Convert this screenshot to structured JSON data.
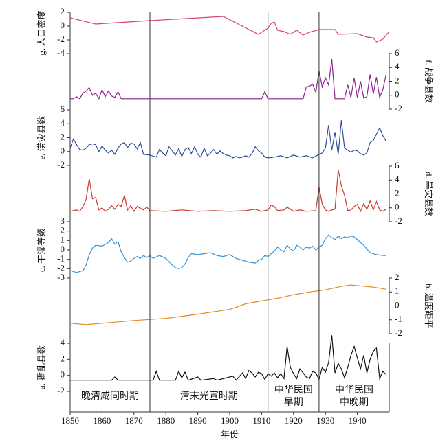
{
  "chart_data": [
    {
      "type": "line",
      "ylabel": "g. 人口密度",
      "side": "left",
      "color": "#d6407f",
      "ylim": [
        -4,
        2
      ],
      "yticks": [
        2,
        0,
        -2,
        -4
      ],
      "x": [
        1850,
        1858,
        1875,
        1898,
        1909,
        1912,
        1913,
        1914,
        1915,
        1917,
        1919,
        1921,
        1923,
        1925,
        1928,
        1933,
        1934,
        1940,
        1943,
        1945,
        1946,
        1948,
        1950
      ],
      "values": [
        1.2,
        0.3,
        0.8,
        1.4,
        -1.2,
        -0.3,
        0.4,
        0.6,
        -0.6,
        -0.8,
        -1.2,
        -0.6,
        -1.3,
        -0.9,
        -0.5,
        -0.5,
        -1.2,
        -1.1,
        -1.6,
        -1.7,
        -2.3,
        -1.9,
        -0.8
      ]
    },
    {
      "type": "line",
      "ylabel": "f. 战争县数",
      "side": "right",
      "color": "#8e1f8e",
      "ylim": [
        -2,
        6
      ],
      "yticks": [
        6,
        4,
        2,
        0,
        -2
      ],
      "x": [
        1850,
        1851,
        1852,
        1853,
        1854,
        1855,
        1856,
        1857,
        1858,
        1859,
        1860,
        1861,
        1862,
        1863,
        1864,
        1865,
        1866,
        1910,
        1911,
        1912,
        1923,
        1924,
        1925,
        1926,
        1927,
        1928,
        1929,
        1930,
        1931,
        1932,
        1933,
        1934,
        1935,
        1936,
        1937,
        1938,
        1939,
        1940,
        1941,
        1942,
        1943,
        1944,
        1945,
        1946,
        1947,
        1948,
        1949
      ],
      "values": [
        -0.5,
        -0.5,
        -0.2,
        -0.5,
        0.3,
        0.6,
        1.1,
        0,
        0.3,
        -0.5,
        0.8,
        -0.2,
        0.6,
        -0.1,
        -0.3,
        0.5,
        -0.5,
        -0.5,
        0.5,
        -0.5,
        -0.5,
        1.2,
        1.3,
        1.6,
        0.4,
        3.5,
        1.2,
        2.5,
        1.5,
        5.2,
        -0.5,
        -0.5,
        -0.5,
        -0.5,
        1.5,
        -0.3,
        2.5,
        -0.3,
        2.0,
        -0.4,
        -0.2,
        3.0,
        0.2,
        2.6,
        -0.3,
        0.8,
        3.0
      ]
    },
    {
      "type": "line",
      "ylabel": "e. 涝灾县数",
      "side": "left",
      "color": "#2b4c9a",
      "ylim": [
        -2,
        6
      ],
      "yticks": [
        6,
        4,
        2,
        0,
        -2
      ],
      "x": [
        1850,
        1851,
        1852,
        1853,
        1854,
        1855,
        1856,
        1857,
        1858,
        1859,
        1860,
        1861,
        1862,
        1863,
        1864,
        1865,
        1866,
        1867,
        1868,
        1869,
        1870,
        1871,
        1872,
        1873,
        1875,
        1877,
        1878,
        1879,
        1880,
        1881,
        1882,
        1883,
        1884,
        1885,
        1886,
        1887,
        1888,
        1889,
        1890,
        1891,
        1892,
        1893,
        1894,
        1895,
        1896,
        1897,
        1898,
        1899,
        1900,
        1901,
        1902,
        1903,
        1904,
        1905,
        1906,
        1907,
        1908,
        1909,
        1910,
        1911,
        1912,
        1914,
        1916,
        1918,
        1920,
        1922,
        1924,
        1926,
        1928,
        1929,
        1930,
        1931,
        1932,
        1933,
        1934,
        1935,
        1936,
        1937,
        1938,
        1939,
        1940,
        1941,
        1942,
        1943,
        1944,
        1945,
        1946,
        1947,
        1948,
        1949
      ],
      "values": [
        0.5,
        1.8,
        1.0,
        0.3,
        0.2,
        0.5,
        1.0,
        1.1,
        1.0,
        0,
        0.8,
        0.2,
        -0.2,
        0.2,
        -0.4,
        0.5,
        1.1,
        1.3,
        0.6,
        1.2,
        1.1,
        0.4,
        1.3,
        -0.4,
        -0.5,
        -0.8,
        0.3,
        -0.2,
        -0.6,
        0.7,
        0.1,
        -0.5,
        0.4,
        -0.7,
        0.3,
        0.6,
        -0.3,
        0.7,
        -0.4,
        -0.8,
        0.5,
        -0.6,
        -0.2,
        0.3,
        -0.4,
        0.1,
        -0.3,
        -0.5,
        -0.6,
        -0.9,
        -0.7,
        -0.9,
        -0.8,
        -0.6,
        -0.8,
        -0.3,
        0.7,
        0.1,
        -0.2,
        -0.8,
        -0.9,
        -0.8,
        -0.6,
        -0.9,
        -0.5,
        -0.8,
        -0.6,
        -0.9,
        -0.4,
        -0.2,
        0.5,
        3.8,
        0.2,
        2.8,
        -0.4,
        4.5,
        0.5,
        0.2,
        -0.1,
        0.2,
        0.1,
        -0.3,
        -0.5,
        -0.2,
        1.3,
        1.6,
        2.5,
        3.4,
        2.3,
        1.5
      ]
    },
    {
      "type": "line",
      "ylabel": "d. 旱灾县数",
      "side": "right",
      "color": "#c8392b",
      "ylim": [
        -2,
        6
      ],
      "yticks": [
        6,
        4,
        2,
        0,
        -2
      ],
      "x": [
        1850,
        1852,
        1853,
        1854,
        1855,
        1856,
        1857,
        1858,
        1859,
        1860,
        1861,
        1862,
        1863,
        1864,
        1865,
        1866,
        1867,
        1868,
        1869,
        1870,
        1871,
        1873,
        1874,
        1875,
        1880,
        1885,
        1890,
        1895,
        1900,
        1905,
        1908,
        1910,
        1912,
        1913,
        1914,
        1915,
        1917,
        1918,
        1920,
        1922,
        1924,
        1927,
        1928,
        1929,
        1930,
        1931,
        1932,
        1933,
        1934,
        1935,
        1936,
        1937,
        1938,
        1939,
        1940,
        1941,
        1942,
        1943,
        1944,
        1945,
        1946,
        1947,
        1948,
        1949
      ],
      "values": [
        -0.5,
        -0.3,
        -0.5,
        0.2,
        1.2,
        4.2,
        1.3,
        1.5,
        -0.3,
        0,
        -0.5,
        -0.2,
        0.3,
        -0.2,
        0.5,
        0.2,
        1.8,
        -0.3,
        0.3,
        -0.5,
        0.2,
        -0.3,
        0.1,
        -0.4,
        -0.5,
        -0.3,
        -0.5,
        -0.4,
        -0.5,
        -0.4,
        -0.2,
        -0.5,
        -0.3,
        0.4,
        0.2,
        -0.4,
        -0.3,
        0.1,
        -0.5,
        -0.3,
        -0.5,
        -0.4,
        3.0,
        0.5,
        -0.3,
        -0.5,
        -0.3,
        -0.2,
        5.5,
        3.2,
        1.8,
        -0.4,
        -0.3,
        0.2,
        0.5,
        -0.5,
        0.6,
        -0.2,
        1.0,
        -0.3,
        0.9,
        -0.3,
        -0.5,
        -0.2
      ]
    },
    {
      "type": "line",
      "ylabel": "c. 干湿等级",
      "side": "left",
      "color": "#3a90d0",
      "ylim": [
        -3,
        3
      ],
      "yticks": [
        3,
        2,
        1,
        0,
        -1,
        -2,
        -3
      ],
      "x": [
        1850,
        1852,
        1854,
        1855,
        1856,
        1857,
        1858,
        1860,
        1862,
        1863,
        1864,
        1865,
        1866,
        1867,
        1868,
        1869,
        1870,
        1871,
        1872,
        1873,
        1874,
        1875,
        1876,
        1878,
        1880,
        1882,
        1883,
        1884,
        1885,
        1886,
        1887,
        1888,
        1890,
        1892,
        1894,
        1896,
        1898,
        1900,
        1902,
        1904,
        1906,
        1908,
        1909,
        1910,
        1911,
        1912,
        1913,
        1914,
        1915,
        1916,
        1917,
        1918,
        1919,
        1920,
        1921,
        1922,
        1923,
        1924,
        1925,
        1926,
        1927,
        1928,
        1929,
        1930,
        1931,
        1932,
        1933,
        1934,
        1935,
        1936,
        1937,
        1938,
        1939,
        1940,
        1941,
        1942,
        1944,
        1946,
        1948,
        1949
      ],
      "values": [
        -2.2,
        -2.4,
        -2.2,
        -1.6,
        -0.5,
        0.2,
        0.5,
        0.4,
        0.8,
        1.2,
        0.6,
        0.9,
        -0.2,
        -0.8,
        -1.3,
        -1.2,
        -0.9,
        -0.7,
        -0.9,
        -0.6,
        -0.8,
        -0.6,
        -0.9,
        -0.6,
        -0.9,
        -1.6,
        -1.9,
        -2.0,
        -1.9,
        -1.5,
        -0.8,
        -0.4,
        -0.5,
        -0.4,
        -0.3,
        -0.6,
        -0.7,
        -0.5,
        -0.9,
        -1.1,
        -1.3,
        -1.4,
        -1.1,
        -1.0,
        -0.6,
        -0.7,
        -0.4,
        -0.1,
        0.3,
        0.0,
        -0.2,
        0.5,
        0.1,
        -0.1,
        0.5,
        0.3,
        0.0,
        0.3,
        0.2,
        0.4,
        0.0,
        0.3,
        0.5,
        1.2,
        1.6,
        1.3,
        1.1,
        1.5,
        1.2,
        1.4,
        1.3,
        1.5,
        1.4,
        1.1,
        0.8,
        0.5,
        -0.3,
        -0.5,
        -0.6,
        -0.6
      ]
    },
    {
      "type": "line",
      "ylabel": "b. 温度距平",
      "side": "right",
      "color": "#e3891f",
      "ylim": [
        -2,
        2
      ],
      "yticks": [
        2,
        1,
        0,
        -1,
        -2
      ],
      "x": [
        1850,
        1855,
        1860,
        1870,
        1880,
        1890,
        1900,
        1905,
        1910,
        1915,
        1920,
        1925,
        1930,
        1935,
        1938,
        1945,
        1949
      ],
      "values": [
        -1.25,
        -1.35,
        -1.25,
        -1.05,
        -0.9,
        -0.6,
        -0.25,
        0.15,
        0.35,
        0.55,
        0.8,
        1.0,
        1.15,
        1.4,
        1.5,
        1.35,
        1.2
      ]
    },
    {
      "type": "line",
      "ylabel": "a. 霍乱县数",
      "side": "left",
      "color": "#111111",
      "ylim": [
        -2,
        4
      ],
      "yticks": [
        4,
        2,
        0,
        -2
      ],
      "x": [
        1850,
        1863,
        1864,
        1865,
        1876,
        1877,
        1878,
        1883,
        1884,
        1885,
        1886,
        1887,
        1890,
        1891,
        1895,
        1896,
        1901,
        1902,
        1904,
        1905,
        1906,
        1907,
        1908,
        1909,
        1910,
        1911,
        1912,
        1913,
        1914,
        1915,
        1916,
        1917,
        1918,
        1919,
        1920,
        1921,
        1922,
        1924,
        1925,
        1926,
        1927,
        1928,
        1929,
        1930,
        1931,
        1932,
        1933,
        1934,
        1935,
        1936,
        1937,
        1938,
        1939,
        1940,
        1941,
        1942,
        1943,
        1944,
        1945,
        1946,
        1947,
        1948,
        1949
      ],
      "values": [
        -0.6,
        -0.6,
        -0.2,
        -0.6,
        -0.6,
        0.5,
        -0.6,
        -0.6,
        0.5,
        -0.3,
        0.4,
        -0.6,
        -0.2,
        -0.6,
        -0.4,
        -0.6,
        -0.1,
        -0.6,
        0.3,
        -0.4,
        0.6,
        0.3,
        -0.2,
        0.4,
        0.2,
        -0.5,
        0.2,
        -0.1,
        0.3,
        -0.3,
        0.2,
        -0.4,
        3.6,
        1.0,
        0.2,
        -0.4,
        0.8,
        -0.2,
        -0.4,
        0.5,
        0.3,
        -0.5,
        1.0,
        0.4,
        1.6,
        5.0,
        0.3,
        1.5,
        0.8,
        -0.3,
        1.0,
        2.5,
        3.6,
        2.2,
        0.8,
        2.5,
        0.3,
        2.0,
        3.0,
        3.4,
        -0.4,
        0.5,
        0.1
      ],
      "xlabel": "年份",
      "xlim": [
        1850,
        1950
      ],
      "xticks": [
        1850,
        1860,
        1870,
        1880,
        1890,
        1900,
        1910,
        1920,
        1930,
        1940
      ],
      "dividers": [
        1875,
        1912,
        1928
      ],
      "periods": [
        [
          "晚清咸同时期"
        ],
        [
          "清末光宣时期"
        ],
        [
          "中华民国",
          "早期"
        ],
        [
          "中华民国",
          "中晚期"
        ]
      ]
    }
  ]
}
